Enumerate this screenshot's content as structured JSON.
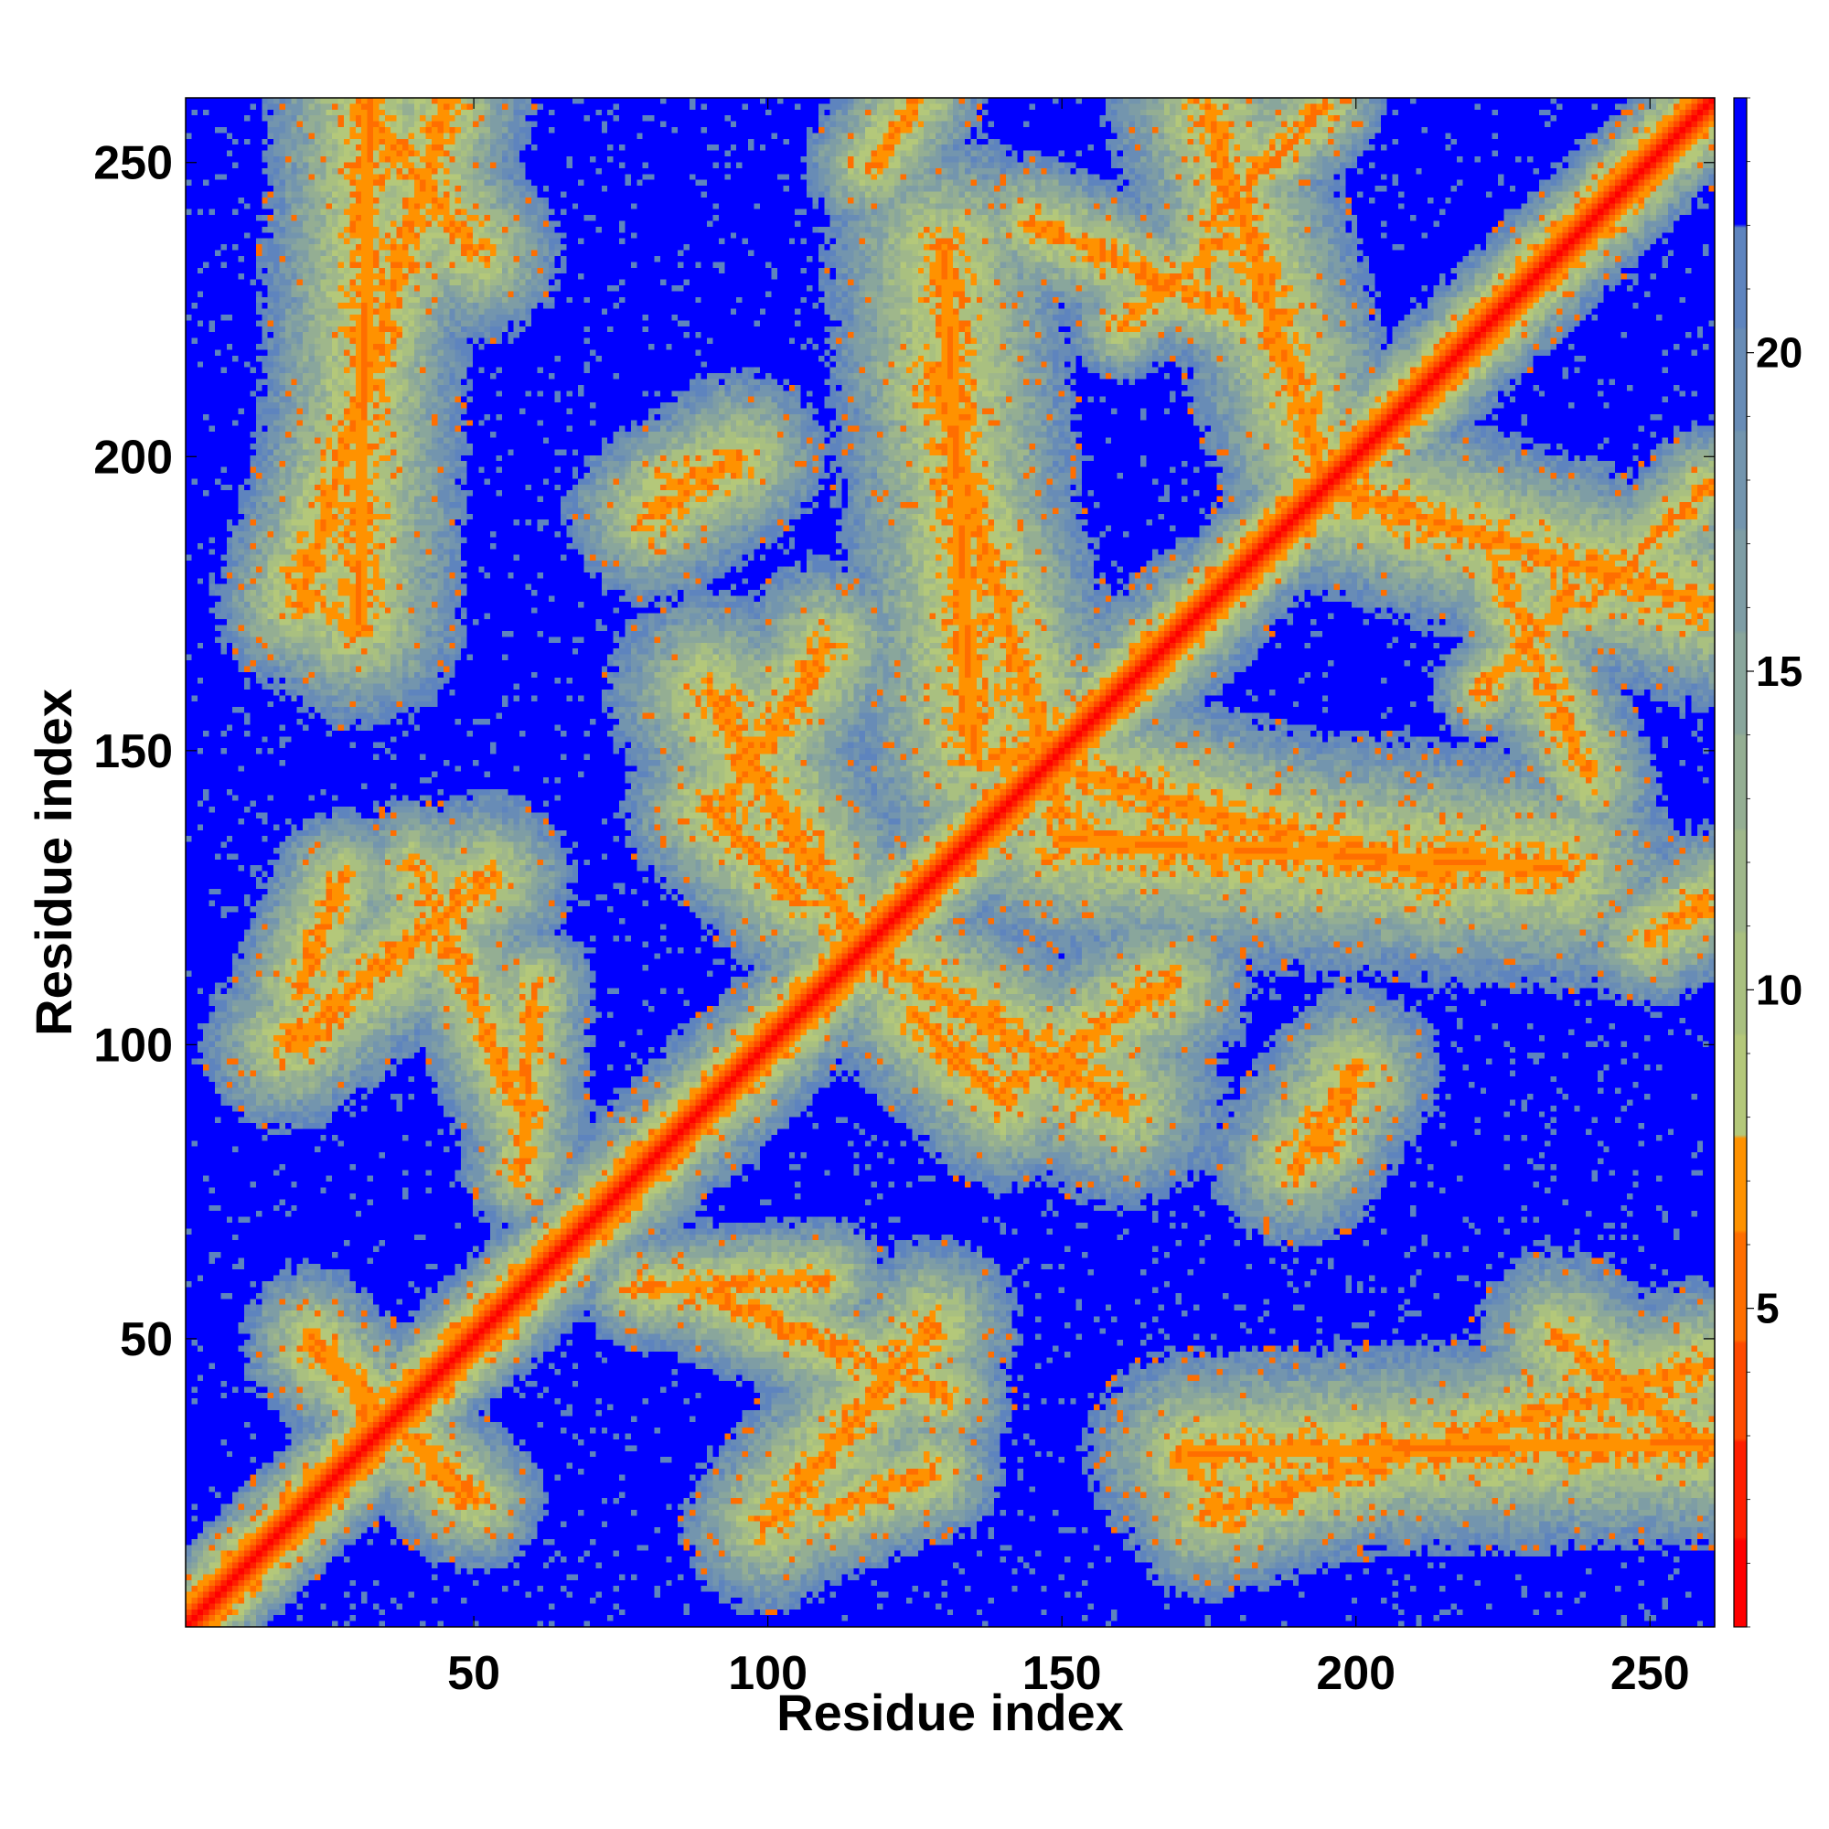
{
  "chart_data": {
    "type": "heatmap",
    "title": "",
    "xlabel": "Residue index",
    "ylabel": "Residue index",
    "xlim": [
      1,
      261
    ],
    "ylim": [
      1,
      261
    ],
    "x_ticks": [
      50,
      100,
      150,
      200,
      250
    ],
    "y_ticks": [
      50,
      100,
      150,
      200,
      250
    ],
    "colorbar": {
      "range": [
        0,
        24
      ],
      "ticks": [
        5,
        10,
        15,
        20
      ],
      "levels": [
        {
          "from": 0,
          "to": 1.4,
          "color": "#ff0000"
        },
        {
          "from": 1.4,
          "to": 2.9,
          "color": "#ff1e00"
        },
        {
          "from": 2.9,
          "to": 4.5,
          "color": "#ff4a00"
        },
        {
          "from": 4.5,
          "to": 6.2,
          "color": "#ff6e00"
        },
        {
          "from": 6.2,
          "to": 7.7,
          "color": "#ff9200"
        },
        {
          "from": 7.7,
          "to": 9.3,
          "color": "#b4c87a"
        },
        {
          "from": 9.3,
          "to": 10.9,
          "color": "#a9c080"
        },
        {
          "from": 10.9,
          "to": 12.5,
          "color": "#9fb78b"
        },
        {
          "from": 12.5,
          "to": 14.0,
          "color": "#94ae93"
        },
        {
          "from": 14.0,
          "to": 15.6,
          "color": "#89a69c"
        },
        {
          "from": 15.6,
          "to": 17.2,
          "color": "#7e9da5"
        },
        {
          "from": 17.2,
          "to": 18.8,
          "color": "#7395ae"
        },
        {
          "from": 18.8,
          "to": 20.4,
          "color": "#688cb6"
        },
        {
          "from": 20.4,
          "to": 22.0,
          "color": "#5e84be"
        },
        {
          "from": 22.0,
          "to": 24.0,
          "color": "#0000ff"
        }
      ]
    },
    "contact_bands": [
      {
        "x": [
          5,
          26
        ],
        "y": [
          5,
          26
        ],
        "width": 2.5
      },
      {
        "x": [
          26,
          60
        ],
        "y": [
          26,
          60
        ],
        "width": 3.5
      },
      {
        "x": [
          60,
          75
        ],
        "y": [
          60,
          75
        ],
        "width": 2.5
      },
      {
        "x": [
          75,
          120
        ],
        "y": [
          75,
          120
        ],
        "width": 4
      },
      {
        "x": [
          120,
          175
        ],
        "y": [
          120,
          175
        ],
        "width": 4
      },
      {
        "x": [
          175,
          261
        ],
        "y": [
          175,
          261
        ],
        "width": 3.5
      },
      {
        "x": [
          22,
          50
        ],
        "y": [
          48,
          22
        ],
        "width": 4
      },
      {
        "x": [
          20,
          27
        ],
        "y": [
          110,
          128
        ],
        "width": 4
      },
      {
        "x": [
          40,
          58
        ],
        "y": [
          130,
          88
        ],
        "width": 4
      },
      {
        "x": [
          20,
          45
        ],
        "y": [
          175,
          260
        ],
        "width": 5
      },
      {
        "x": [
          18,
          30
        ],
        "y": [
          180,
          170
        ],
        "width": 3
      },
      {
        "x": [
          100,
          128
        ],
        "y": [
          18,
          52
        ],
        "width": 5
      },
      {
        "x": [
          78,
          110
        ],
        "y": [
          58,
          60
        ],
        "width": 3.5
      },
      {
        "x": [
          90,
          115
        ],
        "y": [
          160,
          118
        ],
        "width": 6
      },
      {
        "x": [
          125,
          140
        ],
        "y": [
          105,
          90
        ],
        "width": 5
      },
      {
        "x": [
          140,
          168
        ],
        "y": [
          92,
          110
        ],
        "width": 5
      },
      {
        "x": [
          128,
          150
        ],
        "y": [
          215,
          140
        ],
        "width": 6
      },
      {
        "x": [
          150,
          235
        ],
        "y": [
          135,
          130
        ],
        "width": 7
      },
      {
        "x": [
          172,
          261
        ],
        "y": [
          30,
          32
        ],
        "width": 6
      },
      {
        "x": [
          175,
          195
        ],
        "y": [
          240,
          260
        ],
        "width": 3.5
      },
      {
        "x": [
          160,
          178
        ],
        "y": [
          222,
          238
        ],
        "width": 3
      },
      {
        "x": [
          195,
          260
        ],
        "y": [
          195,
          175
        ],
        "width": 6
      },
      {
        "x": [
          225,
          240
        ],
        "y": [
          180,
          145
        ],
        "width": 4
      },
      {
        "x": [
          190,
          200
        ],
        "y": [
          80,
          95
        ],
        "width": 5
      },
      {
        "x": [
          82,
          95
        ],
        "y": [
          195,
          200
        ],
        "width": 4
      },
      {
        "x": [
          250,
          261
        ],
        "y": [
          118,
          125
        ],
        "width": 4
      },
      {
        "x": [
          235,
          261
        ],
        "y": [
          50,
          30
        ],
        "width": 5
      }
    ]
  }
}
